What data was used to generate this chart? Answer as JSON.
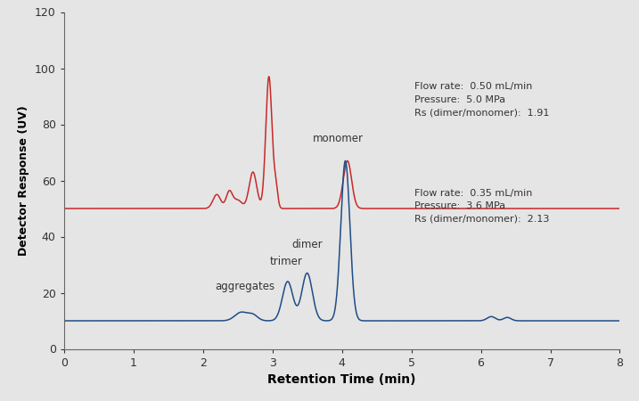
{
  "background_color": "#e5e5e5",
  "plot_bg_color": "#e5e5e5",
  "xlim": [
    0,
    8
  ],
  "ylim": [
    0,
    120
  ],
  "xticks": [
    0,
    1,
    2,
    3,
    4,
    5,
    6,
    7,
    8
  ],
  "yticks": [
    0,
    20,
    40,
    60,
    80,
    100,
    120
  ],
  "xlabel": "Retention Time (min)",
  "ylabel": "Detector Response (UV)",
  "red_color": "#c8292a",
  "blue_color": "#1e4d85",
  "red_baseline": 50,
  "blue_baseline": 10,
  "annotation_red": "Flow rate:  0.50 mL/min\nPressure:  5.0 MPa\nRs (dimer/monomer):  1.91",
  "annotation_blue": "Flow rate:  0.35 mL/min\nPressure:  3.6 MPa\nRs (dimer/monomer):  2.13",
  "label_monomer": "monomer",
  "label_dimer": "dimer",
  "label_trimer": "trimer",
  "label_aggregates": "aggregates",
  "red_peaks": [
    {
      "mu": 2.2,
      "sigma": 0.055,
      "amp": 5
    },
    {
      "mu": 2.38,
      "sigma": 0.045,
      "amp": 6
    },
    {
      "mu": 2.5,
      "sigma": 0.06,
      "amp": 3
    },
    {
      "mu": 2.72,
      "sigma": 0.055,
      "amp": 13
    },
    {
      "mu": 2.95,
      "sigma": 0.045,
      "amp": 47
    },
    {
      "mu": 3.05,
      "sigma": 0.028,
      "amp": 7
    },
    {
      "mu": 4.08,
      "sigma": 0.06,
      "amp": 17
    }
  ],
  "blue_peaks": [
    {
      "mu": 2.55,
      "sigma": 0.09,
      "amp": 3
    },
    {
      "mu": 2.72,
      "sigma": 0.07,
      "amp": 2
    },
    {
      "mu": 3.22,
      "sigma": 0.075,
      "amp": 14
    },
    {
      "mu": 3.5,
      "sigma": 0.075,
      "amp": 17
    },
    {
      "mu": 4.05,
      "sigma": 0.065,
      "amp": 57
    },
    {
      "mu": 6.15,
      "sigma": 0.06,
      "amp": 1.5
    },
    {
      "mu": 6.38,
      "sigma": 0.055,
      "amp": 1.2
    }
  ]
}
